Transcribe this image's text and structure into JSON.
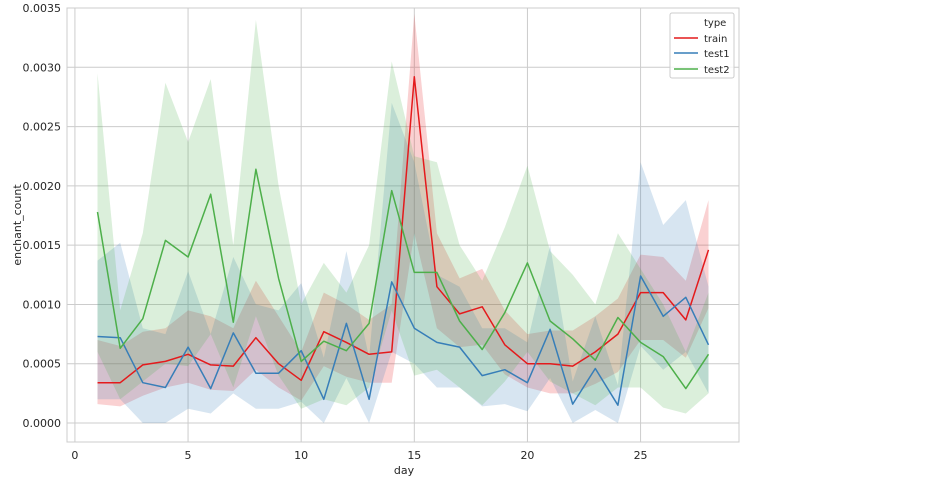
{
  "chart_data": {
    "type": "line",
    "xlabel": "day",
    "ylabel": "enchant_count",
    "xlim": [
      -0.35,
      29.35
    ],
    "ylim": [
      -0.00016,
      0.0035
    ],
    "xticks": [
      0,
      5,
      10,
      15,
      20,
      25
    ],
    "yticks": [
      0.0,
      0.0005,
      0.001,
      0.0015,
      0.002,
      0.0025,
      0.003,
      0.0035
    ],
    "ytick_labels": [
      "0.0000",
      "0.0005",
      "0.0010",
      "0.0015",
      "0.0020",
      "0.0025",
      "0.0030",
      "0.0035"
    ],
    "grid": true,
    "legend": {
      "title": "type",
      "position": "top-right",
      "entries": [
        "train",
        "test1",
        "test2"
      ]
    },
    "x": [
      1,
      2,
      3,
      4,
      5,
      6,
      7,
      8,
      9,
      10,
      11,
      12,
      13,
      14,
      15,
      16,
      17,
      18,
      19,
      20,
      21,
      22,
      23,
      24,
      25,
      26,
      27,
      28
    ],
    "series": [
      {
        "name": "train",
        "color": "#e41a1c",
        "values": [
          0.00034,
          0.00034,
          0.00049,
          0.00052,
          0.00058,
          0.00049,
          0.00048,
          0.00072,
          0.0005,
          0.00036,
          0.00077,
          0.00068,
          0.00058,
          0.0006,
          0.00292,
          0.00115,
          0.00092,
          0.00098,
          0.00066,
          0.0005,
          0.0005,
          0.00048,
          0.0006,
          0.00075,
          0.0011,
          0.0011,
          0.00087,
          0.00146
        ],
        "lower": [
          0.00016,
          0.00014,
          0.00023,
          0.0003,
          0.00034,
          0.00028,
          0.00027,
          0.00045,
          0.0003,
          0.00019,
          0.00048,
          0.00039,
          0.00034,
          0.00034,
          0.0016,
          0.0008,
          0.00064,
          0.00066,
          0.00041,
          0.0003,
          0.00025,
          0.00025,
          0.00033,
          0.00043,
          0.0007,
          0.0007,
          0.00055,
          0.00097
        ],
        "upper": [
          0.0007,
          0.00065,
          0.00077,
          0.0008,
          0.00095,
          0.0009,
          0.0008,
          0.0012,
          0.0009,
          0.0006,
          0.0011,
          0.001,
          0.00087,
          0.001,
          0.00345,
          0.0016,
          0.00122,
          0.0013,
          0.00095,
          0.00075,
          0.00078,
          0.00078,
          0.0009,
          0.00105,
          0.00142,
          0.0014,
          0.0012,
          0.00188
        ]
      },
      {
        "name": "test1",
        "color": "#377eb8",
        "values": [
          0.00073,
          0.00072,
          0.00034,
          0.0003,
          0.00064,
          0.00029,
          0.00076,
          0.00042,
          0.00042,
          0.00061,
          0.0002,
          0.00084,
          0.0002,
          0.00119,
          0.0008,
          0.00068,
          0.00064,
          0.0004,
          0.00045,
          0.00034,
          0.00079,
          0.00016,
          0.00046,
          0.00015,
          0.00124,
          0.0009,
          0.00106,
          0.00066
        ],
        "lower": [
          0.0002,
          0.0002,
          0.0,
          0.0,
          0.00012,
          8e-05,
          0.00025,
          0.00012,
          0.00012,
          0.00018,
          0.0,
          0.00038,
          0.0,
          0.0006,
          0.0005,
          0.0003,
          0.0003,
          0.00014,
          0.00016,
          0.0001,
          0.00038,
          0.0,
          0.00011,
          0.0,
          0.00065,
          0.00045,
          0.0006,
          0.00025
        ],
        "upper": [
          0.00137,
          0.00152,
          0.0008,
          0.00075,
          0.00128,
          0.00075,
          0.0014,
          0.001,
          0.00095,
          0.00118,
          0.00055,
          0.00145,
          0.00055,
          0.0027,
          0.0022,
          0.00125,
          0.00115,
          0.0008,
          0.0008,
          0.00068,
          0.0015,
          0.00035,
          0.0009,
          0.00032,
          0.0022,
          0.00167,
          0.00188,
          0.00115
        ]
      },
      {
        "name": "test2",
        "color": "#4daf4a",
        "values": [
          0.00178,
          0.00063,
          0.00088,
          0.00154,
          0.0014,
          0.00193,
          0.00085,
          0.00214,
          0.00122,
          0.00052,
          0.00069,
          0.00061,
          0.00084,
          0.00196,
          0.00127,
          0.00127,
          0.00086,
          0.00062,
          0.00093,
          0.00135,
          0.00086,
          0.00071,
          0.00053,
          0.00089,
          0.00068,
          0.00056,
          0.00029,
          0.00058
        ],
        "lower": [
          0.0006,
          0.0002,
          0.00035,
          0.0005,
          0.00048,
          0.00075,
          0.0003,
          0.0009,
          0.0004,
          0.00012,
          0.0002,
          0.00015,
          0.0003,
          0.00095,
          0.0004,
          0.00045,
          0.0003,
          0.00015,
          0.00035,
          0.0006,
          0.00035,
          0.00025,
          0.00015,
          0.0003,
          0.0003,
          0.00013,
          8e-05,
          0.00025
        ],
        "upper": [
          0.00295,
          0.00095,
          0.0016,
          0.00287,
          0.00237,
          0.0029,
          0.0015,
          0.0034,
          0.002,
          0.001,
          0.00135,
          0.0011,
          0.0015,
          0.00305,
          0.00225,
          0.0022,
          0.0015,
          0.0012,
          0.00165,
          0.00217,
          0.00145,
          0.00125,
          0.001,
          0.0016,
          0.0013,
          0.001,
          0.0006,
          0.0011
        ]
      }
    ]
  }
}
